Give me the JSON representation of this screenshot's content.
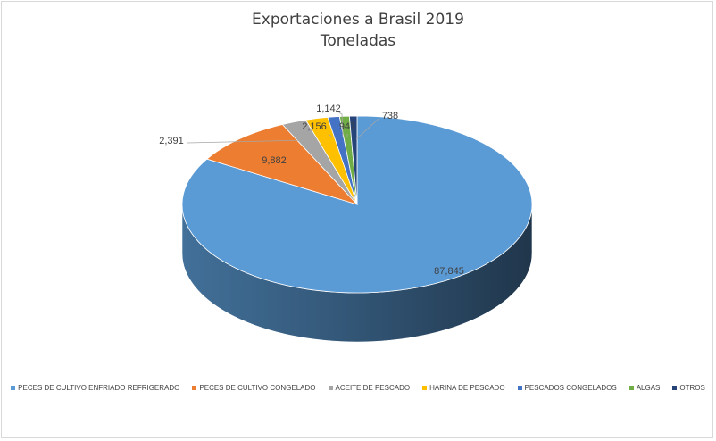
{
  "chart_data": {
    "type": "pie",
    "title": "Exportaciones a Brasil 2019",
    "subtitle": "Toneladas",
    "categories": [
      "PECES DE CULTIVO ENFRIADO REFRIGERADO",
      "PECES DE CULTIVO CONGELADO",
      "ACEITE DE PESCADO",
      "HARINA DE PESCADO",
      "PESCADOS CONGELADOS",
      "ALGAS",
      "OTROS"
    ],
    "values": [
      87845,
      9882,
      2391,
      2156,
      1142,
      947,
      738
    ],
    "value_labels": [
      "87,845",
      "9,882",
      "2,391",
      "2,156",
      "1,142",
      "947",
      "738"
    ],
    "colors": [
      "#5b9bd5",
      "#ed7d31",
      "#a5a5a5",
      "#ffc000",
      "#4472c4",
      "#70ad47",
      "#264478"
    ],
    "legend_position": "bottom",
    "three_d": true
  }
}
